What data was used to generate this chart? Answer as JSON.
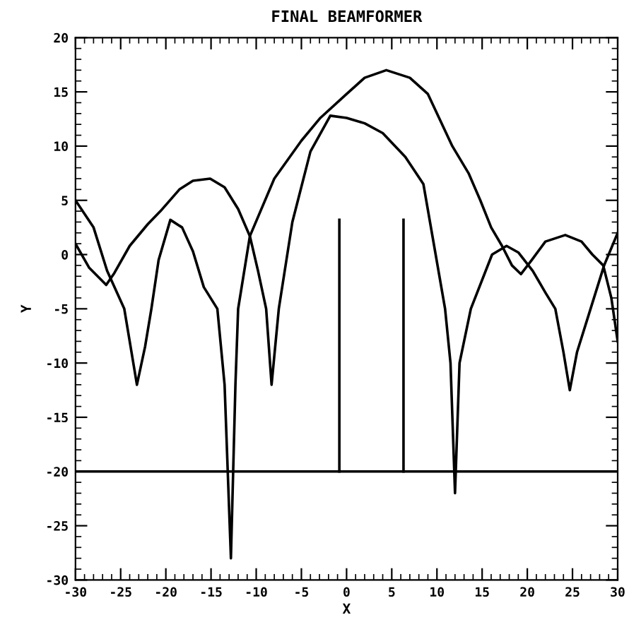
{
  "chart_data": {
    "type": "line",
    "title": "FINAL BEAMFORMER",
    "xlabel": "X",
    "ylabel": "Y",
    "xlim": [
      -30,
      30
    ],
    "ylim": [
      -30,
      20
    ],
    "xticks": [
      -30,
      -25,
      -20,
      -15,
      -10,
      -5,
      0,
      5,
      10,
      15,
      20,
      25,
      30
    ],
    "yticks": [
      -30,
      -25,
      -20,
      -15,
      -10,
      -5,
      0,
      5,
      10,
      15,
      20
    ],
    "grid": false,
    "legend": false,
    "marker": "none",
    "line_style": "solid",
    "ref_lines": [
      {
        "axis": "y",
        "value": -20,
        "color": "#000000"
      }
    ],
    "series": [
      {
        "color": "#000000",
        "x": [
          -30,
          -28,
          -26.5,
          -24.6,
          -23.2,
          -22.3,
          -21.6,
          -20.8,
          -19.5,
          -18.2,
          -17,
          -15.8,
          -14.3,
          -13.5,
          -12.8,
          -12.3,
          -12.0,
          -10.7,
          -8,
          -5,
          -2.9,
          0,
          2,
          4.4,
          7,
          9,
          11.7,
          13.5,
          14.8,
          16,
          17.2,
          18.3,
          19.3,
          20.5,
          22,
          24.2,
          26,
          27.2,
          28.4,
          29.3,
          30
        ],
        "values": [
          5,
          2.5,
          -1.5,
          -5,
          -12,
          -8.5,
          -5,
          -0.5,
          3.2,
          2.5,
          0.3,
          -3,
          -5,
          -12,
          -28,
          -12,
          -5,
          1.7,
          7,
          10.5,
          12.6,
          14.8,
          16.3,
          17,
          16.3,
          14.8,
          10,
          7.5,
          5,
          2.5,
          0.8,
          -1,
          -1.8,
          -0.5,
          1.2,
          1.8,
          1.2,
          0,
          -1,
          -4,
          -8
        ]
      },
      {
        "color": "#000000",
        "x": [
          -30,
          -28.5,
          -26.6,
          -25.7,
          -24,
          -22,
          -20.6,
          -18.5,
          -17,
          -15.1,
          -13.5,
          -12,
          -10.7,
          -9.8,
          -8.9,
          -8.3,
          -7.5,
          -6,
          -4,
          -1.8,
          0,
          2,
          4,
          6.5,
          8.5,
          10.9,
          11.5,
          12.0,
          12.5,
          13.75,
          16.1,
          17.7,
          19,
          20.6,
          22,
          23.1,
          24,
          24.7,
          25.5,
          27,
          28.5,
          30
        ],
        "values": [
          1,
          -1.2,
          -2.8,
          -1.7,
          0.8,
          2.8,
          4,
          6,
          6.8,
          7,
          6.2,
          4.2,
          1.7,
          -1.5,
          -5,
          -12,
          -5,
          3,
          9.5,
          12.8,
          12.6,
          12.1,
          11.2,
          9,
          6.5,
          -5,
          -10,
          -22,
          -10,
          -5,
          0,
          0.8,
          0.2,
          -1.5,
          -3.5,
          -5,
          -9,
          -12.5,
          -9,
          -5,
          -1,
          2
        ]
      },
      {
        "color": "#000000",
        "x": [
          -0.8,
          -0.8
        ],
        "values": [
          -20,
          3.2
        ]
      },
      {
        "color": "#000000",
        "x": [
          6.3,
          6.3
        ],
        "values": [
          -20,
          3.2
        ]
      }
    ]
  }
}
